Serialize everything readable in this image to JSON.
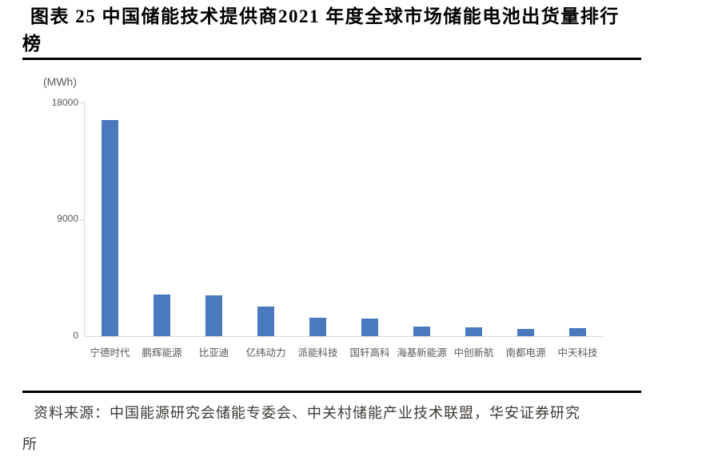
{
  "figure": {
    "title_line1": "图表 25 中国储能技术提供商2021 年度全球市场储能电池出货量排行",
    "title_line2": "榜"
  },
  "chart_data": {
    "type": "bar",
    "title": "中国储能技术提供商2021年度全球市场储能电池出货量排行榜",
    "unit_label": "(MWh)",
    "categories": [
      "宁德时代",
      "鹏辉能源",
      "比亚迪",
      "亿纬动力",
      "派能科技",
      "国轩高科",
      "海基新能源",
      "中创新航",
      "南都电源",
      "中天科技"
    ],
    "values": [
      16600,
      3200,
      3150,
      2300,
      1400,
      1330,
      720,
      680,
      580,
      640
    ],
    "xlabel": "",
    "ylabel": "(MWh)",
    "ylim": [
      0,
      18000
    ],
    "yticks": [
      0,
      9000,
      18000
    ],
    "ytick_labels": [
      "18000",
      "9000",
      "0"
    ],
    "grid": false,
    "legend": "none",
    "bar_color": "#4a79be",
    "axis_color": "#d9d9d9",
    "tick_text_color": "#595959"
  },
  "source": {
    "line1": "资料来源：中国能源研究会储能专委会、中关村储能产业技术联盟，华安证券研究",
    "line2": "所"
  }
}
